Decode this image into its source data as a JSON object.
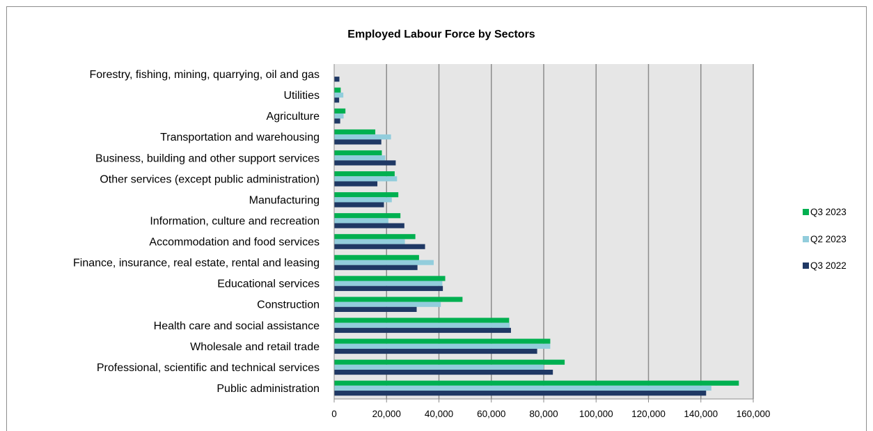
{
  "chart_data": {
    "type": "bar",
    "orientation": "horizontal",
    "title": "Employed Labour Force by Sectors",
    "xlabel": "",
    "ylabel": "",
    "xlim": [
      0,
      160000
    ],
    "x_ticks": [
      "0",
      "20,000",
      "40,000",
      "60,000",
      "80,000",
      "100,000",
      "120,000",
      "140,000",
      "160,000"
    ],
    "grid": "vertical major gridlines",
    "legend_position": "right",
    "categories": [
      "Forestry, fishing, mining, quarrying, oil and gas",
      "Utilities",
      "Agriculture",
      "Transportation and warehousing",
      "Business, building and other support services",
      "Other services (except public administration)",
      "Manufacturing",
      "Information, culture and recreation",
      "Accommodation and food services",
      "Finance, insurance, real estate, rental and leasing",
      "Educational services",
      "Construction",
      "Health care and social assistance",
      "Wholesale and retail trade",
      "Professional, scientific and technical services",
      "Public administration"
    ],
    "series": [
      {
        "name": "Q3 2023",
        "color": "#00b050",
        "values": [
          0,
          2500,
          4300,
          15700,
          18200,
          23100,
          24500,
          25300,
          31000,
          32400,
          42400,
          49000,
          66800,
          82500,
          88000,
          154500
        ]
      },
      {
        "name": "Q2 2023",
        "color": "#92cddc",
        "values": [
          0,
          3500,
          3600,
          21700,
          19500,
          24000,
          22000,
          20700,
          27000,
          38000,
          41300,
          40700,
          67000,
          82500,
          80000,
          144000
        ]
      },
      {
        "name": "Q3 2022",
        "color": "#1f3864",
        "values": [
          2000,
          1900,
          2300,
          18000,
          23500,
          16500,
          19000,
          26800,
          34700,
          31800,
          41500,
          31500,
          67500,
          77500,
          83500,
          142000
        ]
      }
    ]
  }
}
